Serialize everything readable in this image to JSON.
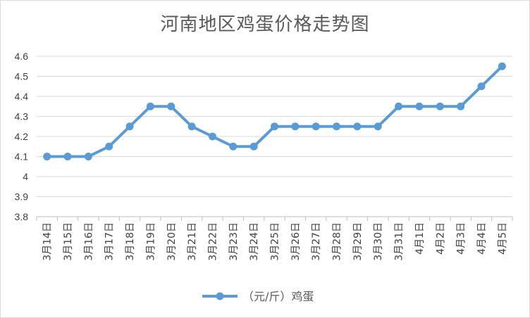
{
  "chart_data": {
    "type": "line",
    "title": "河南地区鸡蛋价格走势图",
    "xlabel": "",
    "ylabel": "",
    "categories": [
      "3月14日",
      "3月15日",
      "3月16日",
      "3月17日",
      "3月18日",
      "3月19日",
      "3月20日",
      "3月21日",
      "3月22日",
      "3月23日",
      "3月24日",
      "3月25日",
      "3月26日",
      "3月27日",
      "3月28日",
      "3月29日",
      "3月30日",
      "3月31日",
      "4月1日",
      "4月2日",
      "4月3日",
      "4月4日",
      "4月5日"
    ],
    "series": [
      {
        "name": "（元/斤）鸡蛋",
        "color": "#5b9bd5",
        "values": [
          4.1,
          4.1,
          4.1,
          4.15,
          4.25,
          4.35,
          4.35,
          4.25,
          4.2,
          4.15,
          4.15,
          4.25,
          4.25,
          4.25,
          4.25,
          4.25,
          4.25,
          4.35,
          4.35,
          4.35,
          4.35,
          4.45,
          4.55
        ]
      }
    ],
    "ylim": [
      3.8,
      4.6
    ],
    "yticks": [
      "3.8",
      "3.9",
      "4",
      "4.1",
      "4.2",
      "4.3",
      "4.4",
      "4.5",
      "4.6"
    ],
    "grid": true,
    "legend_position": "bottom"
  }
}
